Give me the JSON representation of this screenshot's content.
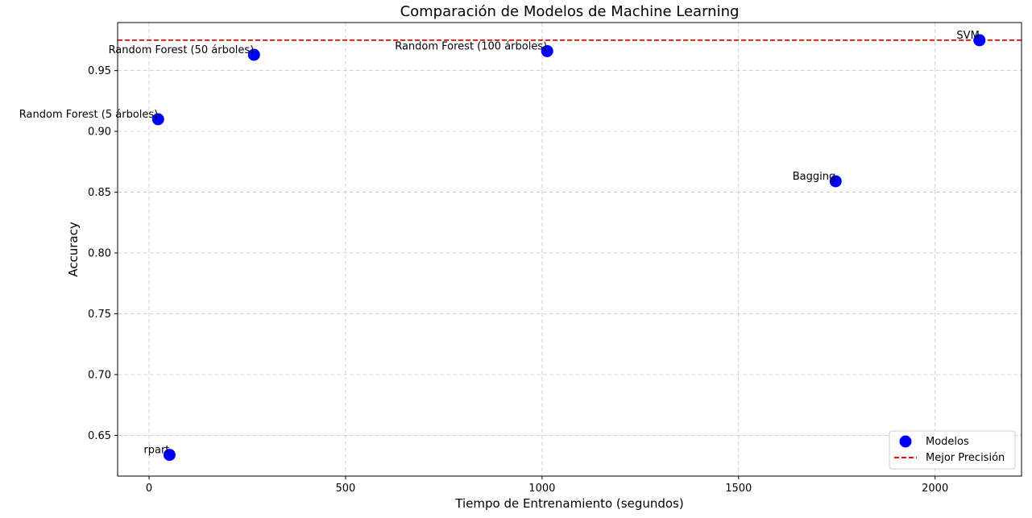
{
  "chart_data": {
    "type": "scatter",
    "title": "Comparación de Modelos de Machine Learning",
    "xlabel": "Tiempo de Entrenamiento (segundos)",
    "ylabel": "Accuracy",
    "xlim": [
      -80,
      2220
    ],
    "ylim": [
      0.6165,
      0.9895
    ],
    "xticks": [
      0,
      500,
      1000,
      1500,
      2000
    ],
    "yticks": [
      0.65,
      0.7,
      0.75,
      0.8,
      0.85,
      0.9,
      0.95
    ],
    "ytick_labels": [
      "0.65",
      "0.70",
      "0.75",
      "0.80",
      "0.85",
      "0.90",
      "0.95"
    ],
    "grid": true,
    "legend_position": "lower-right",
    "series": [
      {
        "name": "Modelos",
        "color": "#0000ff",
        "points": [
          {
            "label": "rpart",
            "x": 52,
            "y": 0.634
          },
          {
            "label": "Random Forest (5 árboles)",
            "x": 23,
            "y": 0.91
          },
          {
            "label": "Random Forest (50 árboles)",
            "x": 267,
            "y": 0.963
          },
          {
            "label": "Random Forest (100 árboles)",
            "x": 1013,
            "y": 0.966
          },
          {
            "label": "Bagging",
            "x": 1747,
            "y": 0.859
          },
          {
            "label": "SVM",
            "x": 2113,
            "y": 0.975
          }
        ]
      }
    ],
    "reference_line": {
      "name": "Mejor Precisión",
      "y": 0.975,
      "color": "#ff0000",
      "style": "dashed"
    }
  }
}
